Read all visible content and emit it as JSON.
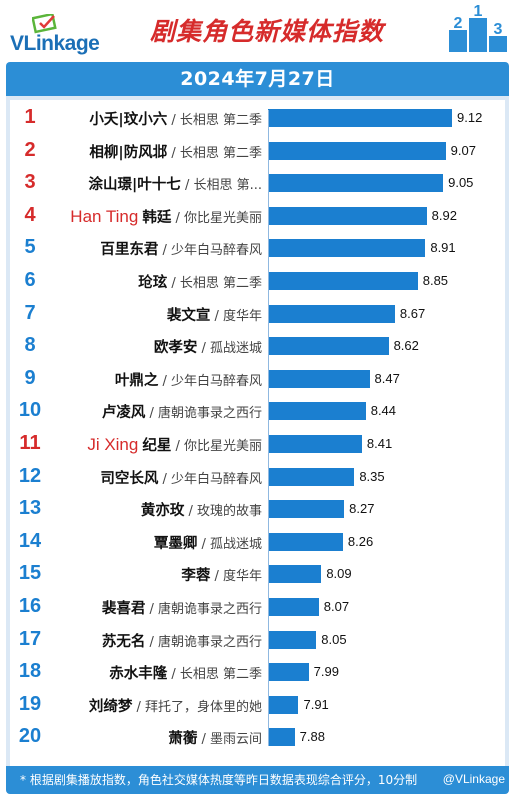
{
  "header": {
    "logo_text": "VLinkage",
    "title": "剧集角色新媒体指数",
    "date": "2024年7月27日"
  },
  "footer": {
    "note": "* 根据剧集播放指数，角色社交媒体热度等昨日数据表现综合评分，10分制",
    "watermark": "@VLinkage"
  },
  "colors": {
    "accent": "#2c8ed6",
    "bar": "#1b7fd0",
    "rank_top": "#d62b2b",
    "rank_rest": "#1b7fd0",
    "title": "#d62b2b"
  },
  "chart_data": {
    "type": "bar",
    "orientation": "horizontal",
    "title": "剧集角色新媒体指数",
    "subtitle": "2024年7月27日",
    "xlim": [
      0,
      10
    ],
    "grid": false,
    "legend": "none",
    "items": [
      {
        "rank": "1",
        "en": "",
        "name": "小夭|玟小六",
        "drama": "长相思 第二季",
        "value": 9.12
      },
      {
        "rank": "2",
        "en": "",
        "name": "相柳|防风邶",
        "drama": "长相思 第二季",
        "value": 9.07
      },
      {
        "rank": "3",
        "en": "",
        "name": "涂山璟|叶十七",
        "drama": "长相思 第...",
        "value": 9.05
      },
      {
        "rank": "4",
        "en": "Han Ting",
        "name": "韩廷",
        "drama": "你比星光美丽",
        "value": 8.92
      },
      {
        "rank": "5",
        "en": "",
        "name": "百里东君",
        "drama": "少年白马醉春风",
        "value": 8.91
      },
      {
        "rank": "6",
        "en": "",
        "name": "玱玹",
        "drama": "长相思 第二季",
        "value": 8.85
      },
      {
        "rank": "7",
        "en": "",
        "name": "裴文宣",
        "drama": "度华年",
        "value": 8.67
      },
      {
        "rank": "8",
        "en": "",
        "name": "欧孝安",
        "drama": "孤战迷城",
        "value": 8.62
      },
      {
        "rank": "9",
        "en": "",
        "name": "叶鼎之",
        "drama": "少年白马醉春风",
        "value": 8.47
      },
      {
        "rank": "10",
        "en": "",
        "name": "卢凌风",
        "drama": "唐朝诡事录之西行",
        "value": 8.44
      },
      {
        "rank": "11",
        "en": "Ji Xing",
        "name": "纪星",
        "drama": "你比星光美丽",
        "value": 8.41
      },
      {
        "rank": "12",
        "en": "",
        "name": "司空长风",
        "drama": "少年白马醉春风",
        "value": 8.35
      },
      {
        "rank": "13",
        "en": "",
        "name": "黄亦玫",
        "drama": "玫瑰的故事",
        "value": 8.27
      },
      {
        "rank": "14",
        "en": "",
        "name": "覃墨卿",
        "drama": "孤战迷城",
        "value": 8.26
      },
      {
        "rank": "15",
        "en": "",
        "name": "李蓉",
        "drama": "度华年",
        "value": 8.09
      },
      {
        "rank": "16",
        "en": "",
        "name": "裴喜君",
        "drama": "唐朝诡事录之西行",
        "value": 8.07
      },
      {
        "rank": "17",
        "en": "",
        "name": "苏无名",
        "drama": "唐朝诡事录之西行",
        "value": 8.05
      },
      {
        "rank": "18",
        "en": "",
        "name": "赤水丰隆",
        "drama": "长相思 第二季",
        "value": 7.99
      },
      {
        "rank": "19",
        "en": "",
        "name": "刘绮梦",
        "drama": "拜托了，身体里的她",
        "value": 7.91
      },
      {
        "rank": "20",
        "en": "",
        "name": "萧蘅",
        "drama": "墨雨云间",
        "value": 7.88
      }
    ]
  }
}
